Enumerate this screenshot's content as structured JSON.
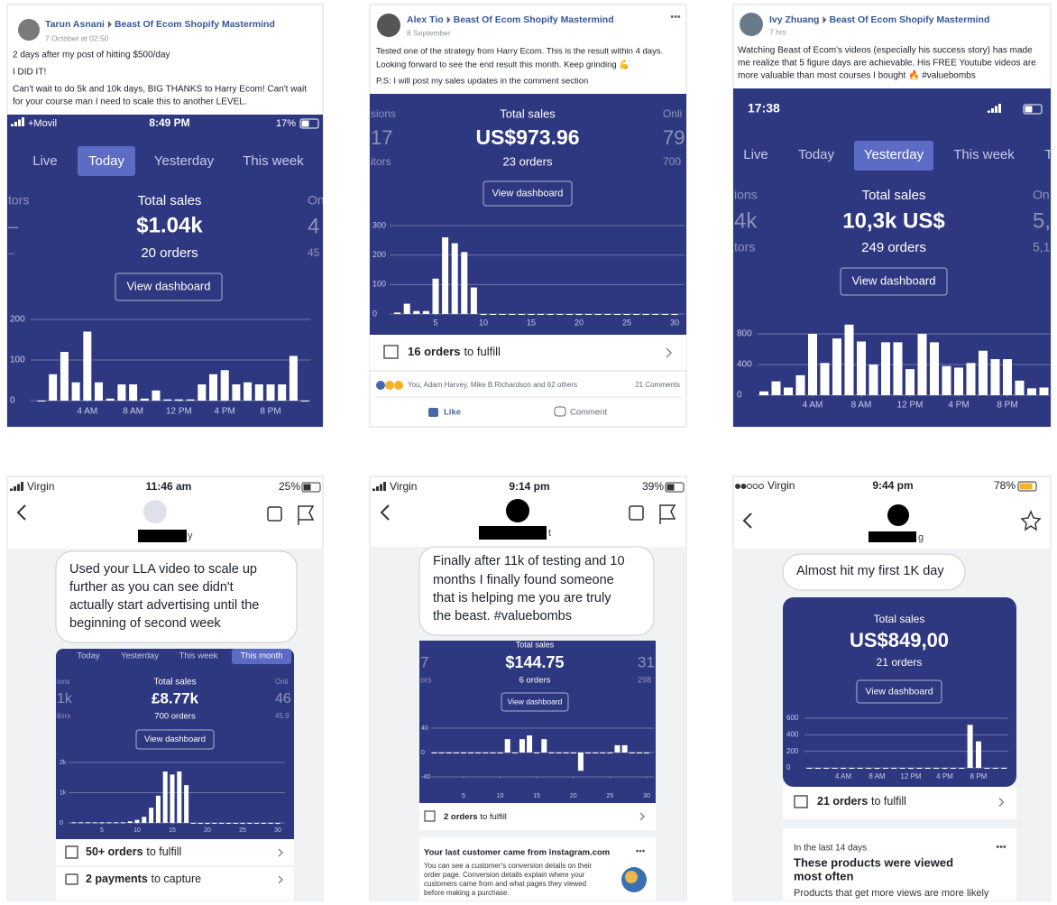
{
  "panels": [
    {
      "author": "Tarun Asnani",
      "group": "Beast Of Ecom Shopify Mastermind",
      "time": "7 October at 02:50",
      "text": [
        "2 days after my post of hitting $500/day",
        "I DID IT!",
        "Can't wait to do 5k and 10k days, BIG THANKS to Harry Ecom! Can't wait",
        "for your course man I need to scale this to another LEVEL."
      ],
      "status": {
        "carrier": "+Movil",
        "time": "8:49 PM",
        "battery": "17%"
      },
      "tabs": [
        "Live",
        "Today",
        "Yesterday",
        "This week"
      ],
      "active_tab": 1,
      "side_left": [
        "tors",
        "–",
        "–"
      ],
      "side_right": [
        "On",
        "4",
        "45"
      ],
      "sales": {
        "title": "Total sales",
        "amount": "$1.04k",
        "orders": "20 orders",
        "button": "View dashboard"
      },
      "chart": {
        "ylim": [
          0,
          200
        ],
        "yticks": [
          0,
          100,
          200
        ],
        "xlim": [
          -0.5,
          23.5
        ],
        "xticks": [
          {
            "value": 4,
            "label": "4 AM"
          },
          {
            "value": 8,
            "label": "8 AM"
          },
          {
            "value": 12,
            "label": "12 PM"
          },
          {
            "value": 16,
            "label": "4 PM"
          },
          {
            "value": 20,
            "label": "8 PM"
          }
        ],
        "values": [
          0,
          65,
          120,
          45,
          170,
          45,
          5,
          40,
          40,
          5,
          25,
          3,
          3,
          3,
          40,
          65,
          75,
          40,
          45,
          40,
          40,
          40,
          110,
          0
        ]
      }
    },
    {
      "author": "Alex Tio",
      "group": "Beast Of Ecom Shopify Mastermind",
      "time": "8 September",
      "more": "•••",
      "text": [
        "Tested one of the strategy from Harry Ecom. This is the result within 4 days.",
        "Looking forward to see the end result this month. Keep grinding 💪",
        "P.S: I will post my sales updates in the comment section"
      ],
      "side_left": [
        "sions",
        "17",
        "itors"
      ],
      "side_right": [
        "Onli",
        "79",
        "700"
      ],
      "sales": {
        "title": "Total sales",
        "amount": "US$973.96",
        "orders": "23 orders",
        "button": "View dashboard"
      },
      "chart": {
        "ylim": [
          0,
          300
        ],
        "yticks": [
          0,
          100,
          200,
          300
        ],
        "xlim": [
          0,
          31
        ],
        "xticks": [
          5,
          10,
          15,
          20,
          25,
          30
        ],
        "x": [
          1,
          2,
          3,
          4,
          5,
          6,
          7,
          8,
          9,
          10,
          11,
          12,
          13,
          14,
          15,
          16,
          17,
          18,
          19,
          20,
          21,
          22,
          23,
          24,
          25,
          26,
          27,
          28,
          29,
          30
        ],
        "values": [
          5,
          35,
          10,
          10,
          120,
          260,
          240,
          210,
          90,
          0,
          0,
          0,
          0,
          0,
          0,
          0,
          0,
          0,
          0,
          0,
          0,
          0,
          0,
          0,
          0,
          0,
          0,
          0,
          0,
          0
        ]
      },
      "fulfill": {
        "count": "16 orders",
        "rest": "to fulfill"
      },
      "reactions": "You, Adam Harvey, Mike B Richardson and 62 others",
      "comments": "21 Comments",
      "actions": [
        "Like",
        "Comment"
      ]
    },
    {
      "author": "Ivy Zhuang",
      "group": "Beast Of Ecom Shopify Mastermind",
      "time": "7 hrs",
      "text": [
        "Watching Beast of Ecom's videos (especially his success story) has made",
        "me realize that 5 figure days are achievable. His FREE Youtube videos are",
        "more valuable than most courses I bought 🔥 #valuebombs"
      ],
      "status": {
        "time": "17:38"
      },
      "tabs": [
        "Live",
        "Today",
        "Yesterday",
        "This week",
        "T"
      ],
      "active_tab": 2,
      "side_left": [
        "ions",
        "4k",
        "tors"
      ],
      "side_right": [
        "On",
        "5,",
        "5,1"
      ],
      "sales": {
        "title": "Total sales",
        "amount": "10,3k US$",
        "orders": "249 orders",
        "button": "View dashboard"
      },
      "chart": {
        "ylim": [
          0,
          800
        ],
        "yticks": [
          0,
          400,
          800
        ],
        "xlim": [
          -0.5,
          23.5
        ],
        "xticks": [
          {
            "value": 4,
            "label": "4 AM"
          },
          {
            "value": 8,
            "label": "8 AM"
          },
          {
            "value": 12,
            "label": "12 PM"
          },
          {
            "value": 16,
            "label": "4 PM"
          },
          {
            "value": 20,
            "label": "8 PM"
          }
        ],
        "values": [
          50,
          180,
          100,
          260,
          800,
          420,
          740,
          920,
          700,
          400,
          690,
          690,
          340,
          800,
          690,
          380,
          360,
          420,
          580,
          470,
          470,
          190,
          90,
          100
        ]
      }
    },
    {
      "status": {
        "carrier": "Virgin",
        "time": "11:46 am",
        "battery": "25%"
      },
      "name": "y",
      "message": [
        "Used your LLA video to scale up",
        "further as you can see didn't",
        "actually start advertising until the",
        "beginning of second week"
      ],
      "tabs": [
        "Today",
        "Yesterday",
        "This week",
        "This month"
      ],
      "active_tab": 3,
      "side_left": [
        "ions",
        "1k",
        "itors"
      ],
      "side_right": [
        "Onli",
        "46",
        "45.9"
      ],
      "sales": {
        "title": "Total sales",
        "amount": "£8.77k",
        "orders": "700 orders",
        "button": "View dashboard"
      },
      "chart": {
        "ylim": [
          0,
          2000
        ],
        "yticks": [
          {
            "value": 0,
            "label": "0"
          },
          {
            "value": 1000,
            "label": "1k"
          },
          {
            "value": 2000,
            "label": "2k"
          }
        ],
        "xlim": [
          0,
          31
        ],
        "xticks": [
          5,
          10,
          15,
          20,
          25,
          30
        ],
        "x": [
          1,
          2,
          3,
          4,
          5,
          6,
          7,
          8,
          9,
          10,
          11,
          12,
          13,
          14,
          15,
          16,
          17,
          18,
          19,
          20,
          21,
          22,
          23,
          24,
          25,
          26,
          27,
          28,
          29,
          30
        ],
        "values": [
          20,
          20,
          20,
          20,
          20,
          20,
          20,
          20,
          50,
          100,
          200,
          500,
          900,
          1700,
          1600,
          1700,
          1250,
          0,
          0,
          0,
          0,
          0,
          0,
          0,
          0,
          0,
          0,
          0,
          0,
          0
        ]
      },
      "rows": [
        {
          "count": "50+ orders",
          "rest": "to fulfill"
        },
        {
          "count": "2 payments",
          "rest": "to capture"
        }
      ]
    },
    {
      "status": {
        "carrier": "Virgin",
        "time": "9:14 pm",
        "battery": "39%"
      },
      "name": "t",
      "message": [
        "Finally after 11k of testing and 10",
        "months I finally found someone",
        "that is helping me you are truly",
        "the beast. #valuebombs"
      ],
      "side_left": [
        "7",
        "ors"
      ],
      "side_right": [
        "31",
        "298"
      ],
      "sales": {
        "title": "Total sales",
        "amount": "$144.75",
        "orders": "6 orders",
        "button": "View dashboard"
      },
      "chart": {
        "ylim": [
          -40,
          40
        ],
        "yticks": [
          -40,
          0,
          40
        ],
        "xlim": [
          0,
          31
        ],
        "xticks": [
          5,
          10,
          15,
          20,
          25,
          30
        ],
        "x": [
          1,
          2,
          3,
          4,
          5,
          6,
          7,
          8,
          9,
          10,
          11,
          12,
          13,
          14,
          15,
          16,
          17,
          18,
          19,
          20,
          21,
          22,
          23,
          24,
          25,
          26,
          27,
          28,
          29,
          30
        ],
        "values": [
          0,
          0,
          0,
          0,
          0,
          0,
          0,
          0,
          0,
          0,
          22,
          0,
          22,
          28,
          0,
          22,
          0,
          0,
          0,
          0,
          -30,
          0,
          0,
          0,
          0,
          12,
          12,
          0,
          0,
          0
        ]
      },
      "rows": [
        {
          "count": "2 orders",
          "rest": "to fulfill"
        }
      ],
      "card": {
        "title": "Your last customer came from instagram.com",
        "more": "•••",
        "lines": [
          "You can see a customer's conversion details on their",
          "order page. Conversion details explain where your",
          "customers came from and what pages they viewed",
          "before making a purchase."
        ]
      }
    },
    {
      "status": {
        "carrier": "Virgin",
        "time": "9:44 pm",
        "battery": "78%"
      },
      "name": "g",
      "message": [
        "Almost hit my first 1K day"
      ],
      "sales": {
        "title": "Total sales",
        "amount": "US$849,00",
        "orders": "21 orders",
        "button": "View dashboard"
      },
      "chart": {
        "ylim": [
          0,
          600
        ],
        "yticks": [
          0,
          200,
          400,
          600
        ],
        "xlim": [
          -0.5,
          23.5
        ],
        "xticks": [
          {
            "value": 4,
            "label": "4 AM"
          },
          {
            "value": 8,
            "label": "8 AM"
          },
          {
            "value": 12,
            "label": "12 PM"
          },
          {
            "value": 16,
            "label": "4 PM"
          },
          {
            "value": 20,
            "label": "8 PM"
          }
        ],
        "values": [
          0,
          0,
          0,
          0,
          0,
          0,
          0,
          0,
          0,
          0,
          0,
          0,
          0,
          0,
          0,
          0,
          0,
          0,
          0,
          520,
          320,
          0,
          0,
          0
        ]
      },
      "rows": [
        {
          "count": "21 orders",
          "rest": "to fulfill"
        }
      ],
      "card": {
        "subtitle": "In the last 14 days",
        "more": "•••",
        "title_lines": [
          "These products were viewed",
          "most often"
        ],
        "lines": [
          "Products that get more views are more likely"
        ]
      }
    }
  ]
}
